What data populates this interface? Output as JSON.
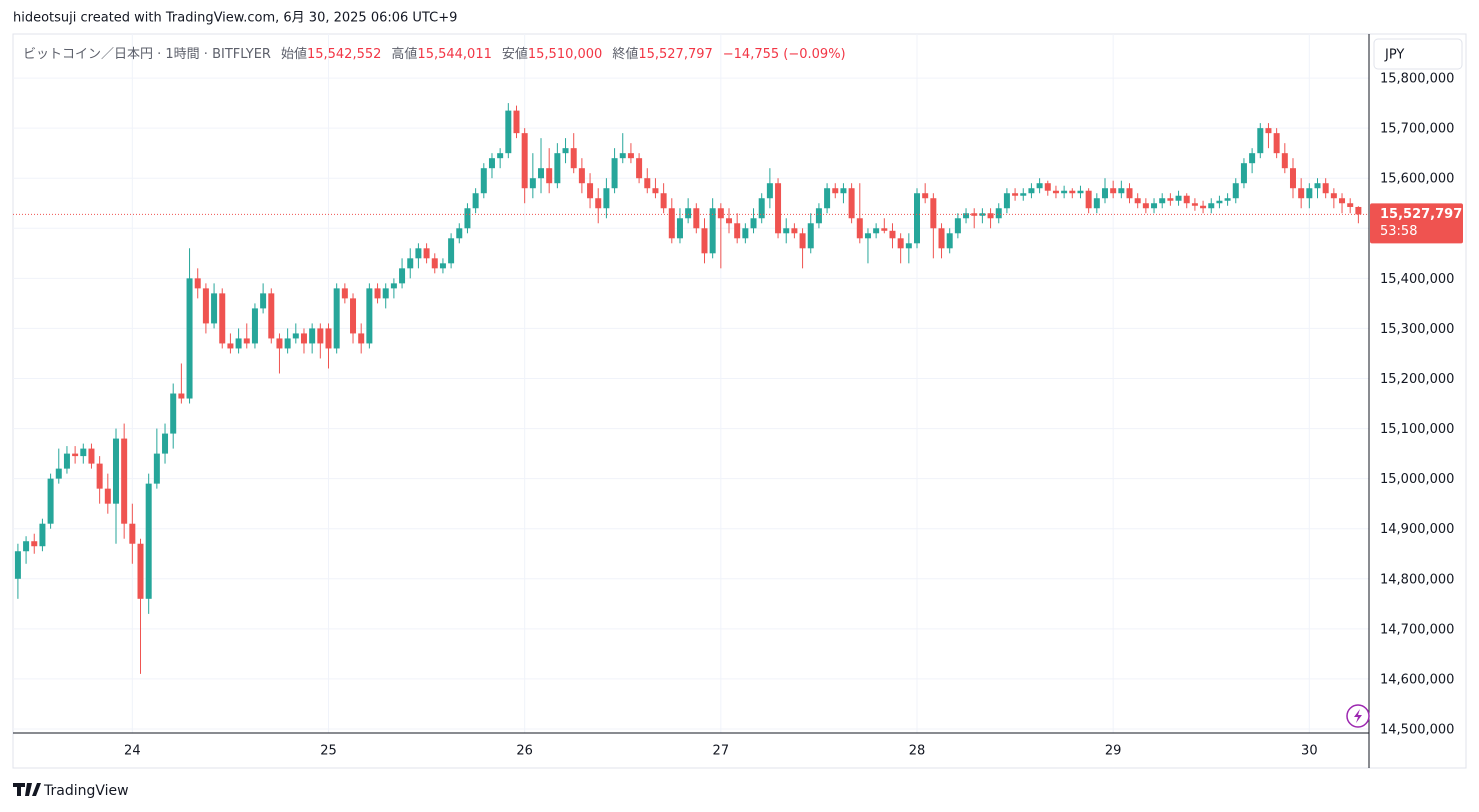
{
  "chart_data": {
    "type": "candlestick",
    "watermark": "hideotsuji created with TradingView.com, 6月 30, 2025 06:06 UTC+9",
    "symbol": "ビットコイン／日本円 · 1時間 · BITFLYER",
    "legend": [
      {
        "label": "始値",
        "value": "15,542,552"
      },
      {
        "label": "高値",
        "value": "15,544,011"
      },
      {
        "label": "安値",
        "value": "15,510,000"
      },
      {
        "label": "終値",
        "value": "15,527,797"
      }
    ],
    "change": "−14,755 (−0.09%)",
    "currency": "JPY",
    "last_price_label": "15,527,797",
    "countdown": "53:58",
    "brand": "TradingView",
    "up_color": "#26a69a",
    "down_color": "#ef5350",
    "grid": true,
    "ylim": [
      14492000,
      15888000
    ],
    "yticks": [
      {
        "value": 14500000,
        "label": "14,500,000"
      },
      {
        "value": 14600000,
        "label": "14,600,000"
      },
      {
        "value": 14700000,
        "label": "14,700,000"
      },
      {
        "value": 14800000,
        "label": "14,800,000"
      },
      {
        "value": 14900000,
        "label": "14,900,000"
      },
      {
        "value": 15000000,
        "label": "15,000,000"
      },
      {
        "value": 15100000,
        "label": "15,100,000"
      },
      {
        "value": 15200000,
        "label": "15,200,000"
      },
      {
        "value": 15300000,
        "label": "15,300,000"
      },
      {
        "value": 15400000,
        "label": "15,400,000"
      },
      {
        "value": 15500000,
        "label": "15,500,000"
      },
      {
        "value": 15600000,
        "label": "15,600,000"
      },
      {
        "value": 15700000,
        "label": "15,700,000"
      },
      {
        "value": 15800000,
        "label": "15,800,000"
      }
    ],
    "xlim": [
      -0.6,
      165.3
    ],
    "xticks": [
      {
        "value": 14,
        "label": "24"
      },
      {
        "value": 38,
        "label": "25"
      },
      {
        "value": 62,
        "label": "26"
      },
      {
        "value": 86,
        "label": "27"
      },
      {
        "value": 110,
        "label": "28"
      },
      {
        "value": 134,
        "label": "29"
      },
      {
        "value": 158,
        "label": "30"
      }
    ],
    "ohlc": [
      [
        14800000,
        14870000,
        14760000,
        14855000
      ],
      [
        14855000,
        14885000,
        14830000,
        14875000
      ],
      [
        14875000,
        14890000,
        14850000,
        14865000
      ],
      [
        14865000,
        14920000,
        14855000,
        14910000
      ],
      [
        14910000,
        15010000,
        14900000,
        15000000
      ],
      [
        15000000,
        15060000,
        14990000,
        15020000
      ],
      [
        15020000,
        15065000,
        15010000,
        15050000
      ],
      [
        15050000,
        15065000,
        15030000,
        15045000
      ],
      [
        15045000,
        15070000,
        15030000,
        15060000
      ],
      [
        15060000,
        15070000,
        15020000,
        15030000
      ],
      [
        15030000,
        15045000,
        14950000,
        14980000
      ],
      [
        14980000,
        15010000,
        14930000,
        14950000
      ],
      [
        14950000,
        15100000,
        14870000,
        15080000
      ],
      [
        15080000,
        15110000,
        14880000,
        14910000
      ],
      [
        14910000,
        14950000,
        14830000,
        14870000
      ],
      [
        14870000,
        14880000,
        14610000,
        14760000
      ],
      [
        14760000,
        15010000,
        14730000,
        14990000
      ],
      [
        14990000,
        15100000,
        14980000,
        15050000
      ],
      [
        15050000,
        15110000,
        15030000,
        15090000
      ],
      [
        15090000,
        15190000,
        15060000,
        15170000
      ],
      [
        15170000,
        15230000,
        15150000,
        15160000
      ],
      [
        15160000,
        15460000,
        15150000,
        15400000
      ],
      [
        15400000,
        15420000,
        15360000,
        15380000
      ],
      [
        15380000,
        15390000,
        15290000,
        15310000
      ],
      [
        15310000,
        15390000,
        15300000,
        15370000
      ],
      [
        15370000,
        15380000,
        15260000,
        15270000
      ],
      [
        15270000,
        15290000,
        15250000,
        15260000
      ],
      [
        15260000,
        15300000,
        15250000,
        15280000
      ],
      [
        15280000,
        15310000,
        15260000,
        15270000
      ],
      [
        15270000,
        15350000,
        15260000,
        15340000
      ],
      [
        15340000,
        15390000,
        15330000,
        15370000
      ],
      [
        15370000,
        15380000,
        15270000,
        15280000
      ],
      [
        15280000,
        15290000,
        15210000,
        15260000
      ],
      [
        15260000,
        15300000,
        15250000,
        15280000
      ],
      [
        15280000,
        15310000,
        15270000,
        15290000
      ],
      [
        15290000,
        15300000,
        15250000,
        15270000
      ],
      [
        15270000,
        15310000,
        15250000,
        15300000
      ],
      [
        15300000,
        15310000,
        15240000,
        15270000
      ],
      [
        15300000,
        15310000,
        15220000,
        15260000
      ],
      [
        15260000,
        15390000,
        15250000,
        15380000
      ],
      [
        15380000,
        15390000,
        15350000,
        15360000
      ],
      [
        15360000,
        15370000,
        15270000,
        15290000
      ],
      [
        15290000,
        15310000,
        15250000,
        15270000
      ],
      [
        15270000,
        15390000,
        15260000,
        15380000
      ],
      [
        15380000,
        15390000,
        15350000,
        15360000
      ],
      [
        15360000,
        15390000,
        15340000,
        15380000
      ],
      [
        15380000,
        15400000,
        15360000,
        15390000
      ],
      [
        15390000,
        15440000,
        15380000,
        15420000
      ],
      [
        15420000,
        15460000,
        15400000,
        15440000
      ],
      [
        15440000,
        15470000,
        15420000,
        15460000
      ],
      [
        15460000,
        15470000,
        15430000,
        15440000
      ],
      [
        15440000,
        15450000,
        15410000,
        15420000
      ],
      [
        15420000,
        15440000,
        15410000,
        15430000
      ],
      [
        15430000,
        15490000,
        15420000,
        15480000
      ],
      [
        15480000,
        15510000,
        15470000,
        15500000
      ],
      [
        15500000,
        15550000,
        15490000,
        15540000
      ],
      [
        15540000,
        15580000,
        15530000,
        15570000
      ],
      [
        15570000,
        15630000,
        15560000,
        15620000
      ],
      [
        15620000,
        15650000,
        15600000,
        15640000
      ],
      [
        15640000,
        15660000,
        15620000,
        15650000
      ],
      [
        15650000,
        15750000,
        15640000,
        15735000
      ],
      [
        15735000,
        15745000,
        15680000,
        15690000
      ],
      [
        15690000,
        15700000,
        15550000,
        15580000
      ],
      [
        15580000,
        15650000,
        15560000,
        15600000
      ],
      [
        15600000,
        15680000,
        15570000,
        15620000
      ],
      [
        15620000,
        15660000,
        15570000,
        15590000
      ],
      [
        15590000,
        15670000,
        15580000,
        15650000
      ],
      [
        15650000,
        15680000,
        15630000,
        15660000
      ],
      [
        15660000,
        15690000,
        15610000,
        15620000
      ],
      [
        15620000,
        15640000,
        15570000,
        15590000
      ],
      [
        15590000,
        15610000,
        15540000,
        15560000
      ],
      [
        15560000,
        15580000,
        15510000,
        15540000
      ],
      [
        15540000,
        15600000,
        15520000,
        15580000
      ],
      [
        15580000,
        15660000,
        15570000,
        15640000
      ],
      [
        15640000,
        15690000,
        15630000,
        15650000
      ],
      [
        15650000,
        15670000,
        15630000,
        15640000
      ],
      [
        15640000,
        15650000,
        15590000,
        15600000
      ],
      [
        15600000,
        15620000,
        15570000,
        15580000
      ],
      [
        15580000,
        15600000,
        15560000,
        15570000
      ],
      [
        15570000,
        15590000,
        15530000,
        15540000
      ],
      [
        15540000,
        15560000,
        15470000,
        15480000
      ],
      [
        15480000,
        15540000,
        15470000,
        15520000
      ],
      [
        15520000,
        15560000,
        15510000,
        15540000
      ],
      [
        15540000,
        15550000,
        15490000,
        15500000
      ],
      [
        15500000,
        15520000,
        15430000,
        15450000
      ],
      [
        15450000,
        15560000,
        15440000,
        15540000
      ],
      [
        15540000,
        15550000,
        15420000,
        15520000
      ],
      [
        15520000,
        15540000,
        15490000,
        15510000
      ],
      [
        15510000,
        15530000,
        15470000,
        15480000
      ],
      [
        15480000,
        15510000,
        15470000,
        15500000
      ],
      [
        15500000,
        15540000,
        15490000,
        15520000
      ],
      [
        15520000,
        15570000,
        15510000,
        15560000
      ],
      [
        15560000,
        15620000,
        15540000,
        15590000
      ],
      [
        15590000,
        15600000,
        15480000,
        15490000
      ],
      [
        15490000,
        15520000,
        15470000,
        15500000
      ],
      [
        15500000,
        15510000,
        15480000,
        15490000
      ],
      [
        15490000,
        15500000,
        15420000,
        15460000
      ],
      [
        15460000,
        15530000,
        15450000,
        15510000
      ],
      [
        15510000,
        15550000,
        15500000,
        15540000
      ],
      [
        15540000,
        15590000,
        15530000,
        15580000
      ],
      [
        15580000,
        15590000,
        15560000,
        15570000
      ],
      [
        15570000,
        15590000,
        15550000,
        15580000
      ],
      [
        15580000,
        15590000,
        15510000,
        15520000
      ],
      [
        15520000,
        15590000,
        15470000,
        15480000
      ],
      [
        15480000,
        15500000,
        15430000,
        15490000
      ],
      [
        15490000,
        15510000,
        15480000,
        15500000
      ],
      [
        15500000,
        15520000,
        15490000,
        15495000
      ],
      [
        15495000,
        15510000,
        15460000,
        15480000
      ],
      [
        15480000,
        15490000,
        15430000,
        15460000
      ],
      [
        15460000,
        15490000,
        15430000,
        15470000
      ],
      [
        15470000,
        15580000,
        15460000,
        15570000
      ],
      [
        15570000,
        15590000,
        15550000,
        15560000
      ],
      [
        15560000,
        15570000,
        15440000,
        15500000
      ],
      [
        15500000,
        15510000,
        15440000,
        15460000
      ],
      [
        15460000,
        15500000,
        15450000,
        15490000
      ],
      [
        15490000,
        15530000,
        15480000,
        15520000
      ],
      [
        15520000,
        15540000,
        15510000,
        15530000
      ],
      [
        15530000,
        15540000,
        15500000,
        15525000
      ],
      [
        15525000,
        15540000,
        15510000,
        15530000
      ],
      [
        15530000,
        15540000,
        15500000,
        15520000
      ],
      [
        15520000,
        15550000,
        15510000,
        15540000
      ],
      [
        15540000,
        15580000,
        15530000,
        15570000
      ],
      [
        15570000,
        15580000,
        15555000,
        15565000
      ],
      [
        15565000,
        15580000,
        15555000,
        15570000
      ],
      [
        15570000,
        15590000,
        15560000,
        15580000
      ],
      [
        15580000,
        15600000,
        15570000,
        15590000
      ],
      [
        15590000,
        15595000,
        15565000,
        15575000
      ],
      [
        15575000,
        15585000,
        15560000,
        15570000
      ],
      [
        15570000,
        15585000,
        15560000,
        15575000
      ],
      [
        15575000,
        15580000,
        15560000,
        15570000
      ],
      [
        15570000,
        15585000,
        15560000,
        15575000
      ],
      [
        15575000,
        15580000,
        15530000,
        15540000
      ],
      [
        15540000,
        15570000,
        15530000,
        15560000
      ],
      [
        15560000,
        15600000,
        15550000,
        15580000
      ],
      [
        15580000,
        15595000,
        15560000,
        15570000
      ],
      [
        15570000,
        15595000,
        15560000,
        15580000
      ],
      [
        15580000,
        15590000,
        15550000,
        15560000
      ],
      [
        15560000,
        15570000,
        15540000,
        15550000
      ],
      [
        15550000,
        15560000,
        15530000,
        15540000
      ],
      [
        15540000,
        15560000,
        15530000,
        15550000
      ],
      [
        15550000,
        15570000,
        15540000,
        15560000
      ],
      [
        15560000,
        15570000,
        15545000,
        15555000
      ],
      [
        15555000,
        15575000,
        15545000,
        15565000
      ],
      [
        15565000,
        15570000,
        15540000,
        15550000
      ],
      [
        15550000,
        15560000,
        15535000,
        15545000
      ],
      [
        15545000,
        15555000,
        15530000,
        15540000
      ],
      [
        15540000,
        15560000,
        15530000,
        15550000
      ],
      [
        15550000,
        15565000,
        15540000,
        15555000
      ],
      [
        15555000,
        15570000,
        15545000,
        15560000
      ],
      [
        15560000,
        15600000,
        15550000,
        15590000
      ],
      [
        15590000,
        15640000,
        15580000,
        15630000
      ],
      [
        15630000,
        15660000,
        15610000,
        15650000
      ],
      [
        15650000,
        15710000,
        15640000,
        15700000
      ],
      [
        15700000,
        15710000,
        15660000,
        15690000
      ],
      [
        15690000,
        15700000,
        15640000,
        15650000
      ],
      [
        15650000,
        15670000,
        15610000,
        15620000
      ],
      [
        15620000,
        15640000,
        15560000,
        15580000
      ],
      [
        15580000,
        15600000,
        15540000,
        15560000
      ],
      [
        15560000,
        15590000,
        15540000,
        15580000
      ],
      [
        15580000,
        15600000,
        15560000,
        15590000
      ],
      [
        15590000,
        15600000,
        15560000,
        15570000
      ],
      [
        15570000,
        15580000,
        15540000,
        15560000
      ],
      [
        15560000,
        15570000,
        15530000,
        15550000
      ],
      [
        15550000,
        15560000,
        15530000,
        15542552
      ],
      [
        15542552,
        15544011,
        15510000,
        15527797
      ]
    ]
  }
}
